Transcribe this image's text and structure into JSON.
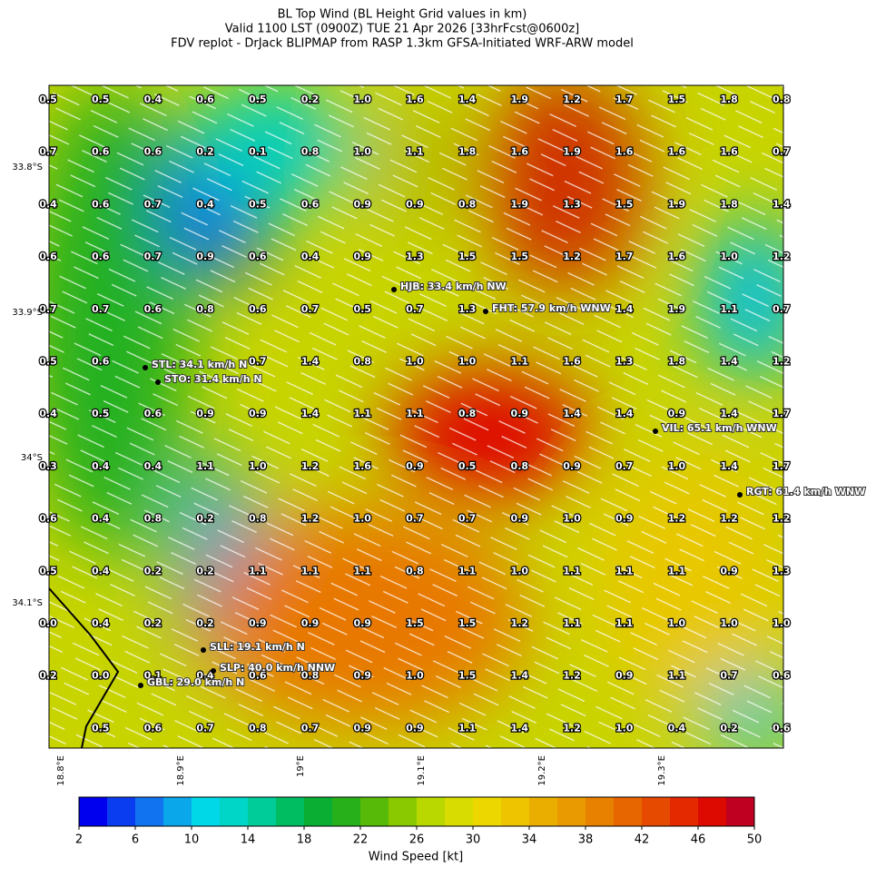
{
  "title": {
    "lines": [
      "BL Top Wind (BL Height Grid values in km)",
      "Valid 1100 LST (0900Z) TUE 21 Apr 2026 [33hrFcst@0600z]",
      "FDV replot - DrJack BLIPMAP from RASP 1.3km GFSA-Initiated WRF-ARW model"
    ]
  },
  "grid_values": [
    [
      "0.5",
      "0.5",
      "0.4",
      "0.6",
      "0.5",
      "0.2",
      "1.0",
      "1.6",
      "1.4",
      "1.9",
      "1.2",
      "1.7",
      "1.5",
      "1.8",
      "0.8"
    ],
    [
      "0.7",
      "0.6",
      "0.6",
      "0.2",
      "0.1",
      "0.8",
      "1.0",
      "1.1",
      "1.8",
      "1.6",
      "1.9",
      "1.6",
      "1.6",
      "1.6",
      "0.7"
    ],
    [
      "0.4",
      "0.6",
      "0.7",
      "0.4",
      "0.5",
      "0.6",
      "0.9",
      "0.9",
      "0.8",
      "1.9",
      "1.3",
      "1.5",
      "1.9",
      "1.8",
      "1.4"
    ],
    [
      "0.6",
      "0.6",
      "0.7",
      "0.9",
      "0.6",
      "0.4",
      "0.9",
      "1.3",
      "1.5",
      "1.5",
      "1.2",
      "1.7",
      "1.6",
      "1.0",
      "1.2"
    ],
    [
      "0.7",
      "0.7",
      "0.6",
      "0.8",
      "0.6",
      "0.7",
      "0.5",
      "0.7",
      "1.3",
      null,
      null,
      "1.4",
      "1.9",
      "1.1",
      "0.7"
    ],
    [
      "0.5",
      "0.6",
      null,
      null,
      "0.7",
      "1.4",
      "0.8",
      "1.0",
      "1.0",
      "1.1",
      "1.6",
      "1.3",
      "1.8",
      "1.4",
      "1.2"
    ],
    [
      "0.4",
      "0.5",
      "0.6",
      "0.9",
      "0.9",
      "1.4",
      "1.1",
      "1.1",
      "0.8",
      "0.9",
      "1.4",
      "1.4",
      "0.9",
      "1.4",
      "1.7"
    ],
    [
      "0.3",
      "0.4",
      "0.4",
      "1.1",
      "1.0",
      "1.2",
      "1.6",
      "0.9",
      "0.5",
      "0.8",
      "0.9",
      "0.7",
      "1.0",
      "1.4",
      "1.7"
    ],
    [
      "0.6",
      "0.4",
      "0.8",
      "0.2",
      "0.8",
      "1.2",
      "1.0",
      "0.7",
      "0.7",
      "0.9",
      "1.0",
      "0.9",
      "1.2",
      "1.2",
      "1.2"
    ],
    [
      "0.5",
      "0.4",
      "0.2",
      "0.2",
      "1.1",
      "1.1",
      "1.1",
      "0.8",
      "1.1",
      "1.0",
      "1.1",
      "1.1",
      "1.1",
      "0.9",
      "1.3"
    ],
    [
      "0.0",
      "0.4",
      "0.2",
      "0.2",
      "0.9",
      "0.9",
      "0.9",
      "1.5",
      "1.5",
      "1.2",
      "1.1",
      "1.1",
      "1.0",
      "1.0",
      "1.0"
    ],
    [
      "0.2",
      "0.0",
      "0.1",
      "0.4",
      "0.6",
      "0.8",
      "0.9",
      "1.0",
      "1.5",
      "1.4",
      "1.2",
      "0.9",
      "1.1",
      "0.7",
      "0.6"
    ],
    [
      null,
      "0.5",
      "0.6",
      "0.7",
      "0.8",
      "0.7",
      "0.9",
      "0.9",
      "1.1",
      "1.4",
      "1.2",
      "1.0",
      "0.4",
      "0.2",
      "0.6"
    ]
  ],
  "stations": [
    {
      "label": "HJB: 33.4 km/h NW"
    },
    {
      "label": "FHT: 57.9 km/h WNW"
    },
    {
      "label": "STL: 34.1 km/h N"
    },
    {
      "label": "STO: 31.4 km/h N"
    },
    {
      "label": "VIL: 65.1 km/h WNW"
    },
    {
      "label": "RGT: 61.4 km/h WNW"
    },
    {
      "label": "SLL: 19.1 km/h N"
    },
    {
      "label": "SLP: 40.0 km/h NNW"
    },
    {
      "label": "GBL: 29.0 km/h N"
    }
  ],
  "lat_labels": [
    "33.8°S",
    "33.9°S",
    "34°S",
    "34.1°S"
  ],
  "lon_labels": [
    "18.8°E",
    "18.9°E",
    "19°E",
    "19.1°E",
    "19.2°E",
    "19.3°E"
  ],
  "colorbar": {
    "label": "Wind Speed [kt]",
    "range": [
      2,
      50
    ],
    "ticks": [
      2,
      6,
      10,
      14,
      18,
      22,
      26,
      30,
      34,
      38,
      42,
      46,
      50
    ],
    "colors": [
      "#0000ee",
      "#0a3cf0",
      "#1273f0",
      "#0aa8ea",
      "#00d8e8",
      "#00d6c8",
      "#00cc9a",
      "#00bd62",
      "#0aae32",
      "#28b01a",
      "#58ba08",
      "#8ac800",
      "#b8d800",
      "#d8dc00",
      "#ecd800",
      "#eec400",
      "#eaae00",
      "#e89a00",
      "#e88000",
      "#e86600",
      "#e64a00",
      "#e42800",
      "#dc0a00",
      "#c00020"
    ]
  }
}
